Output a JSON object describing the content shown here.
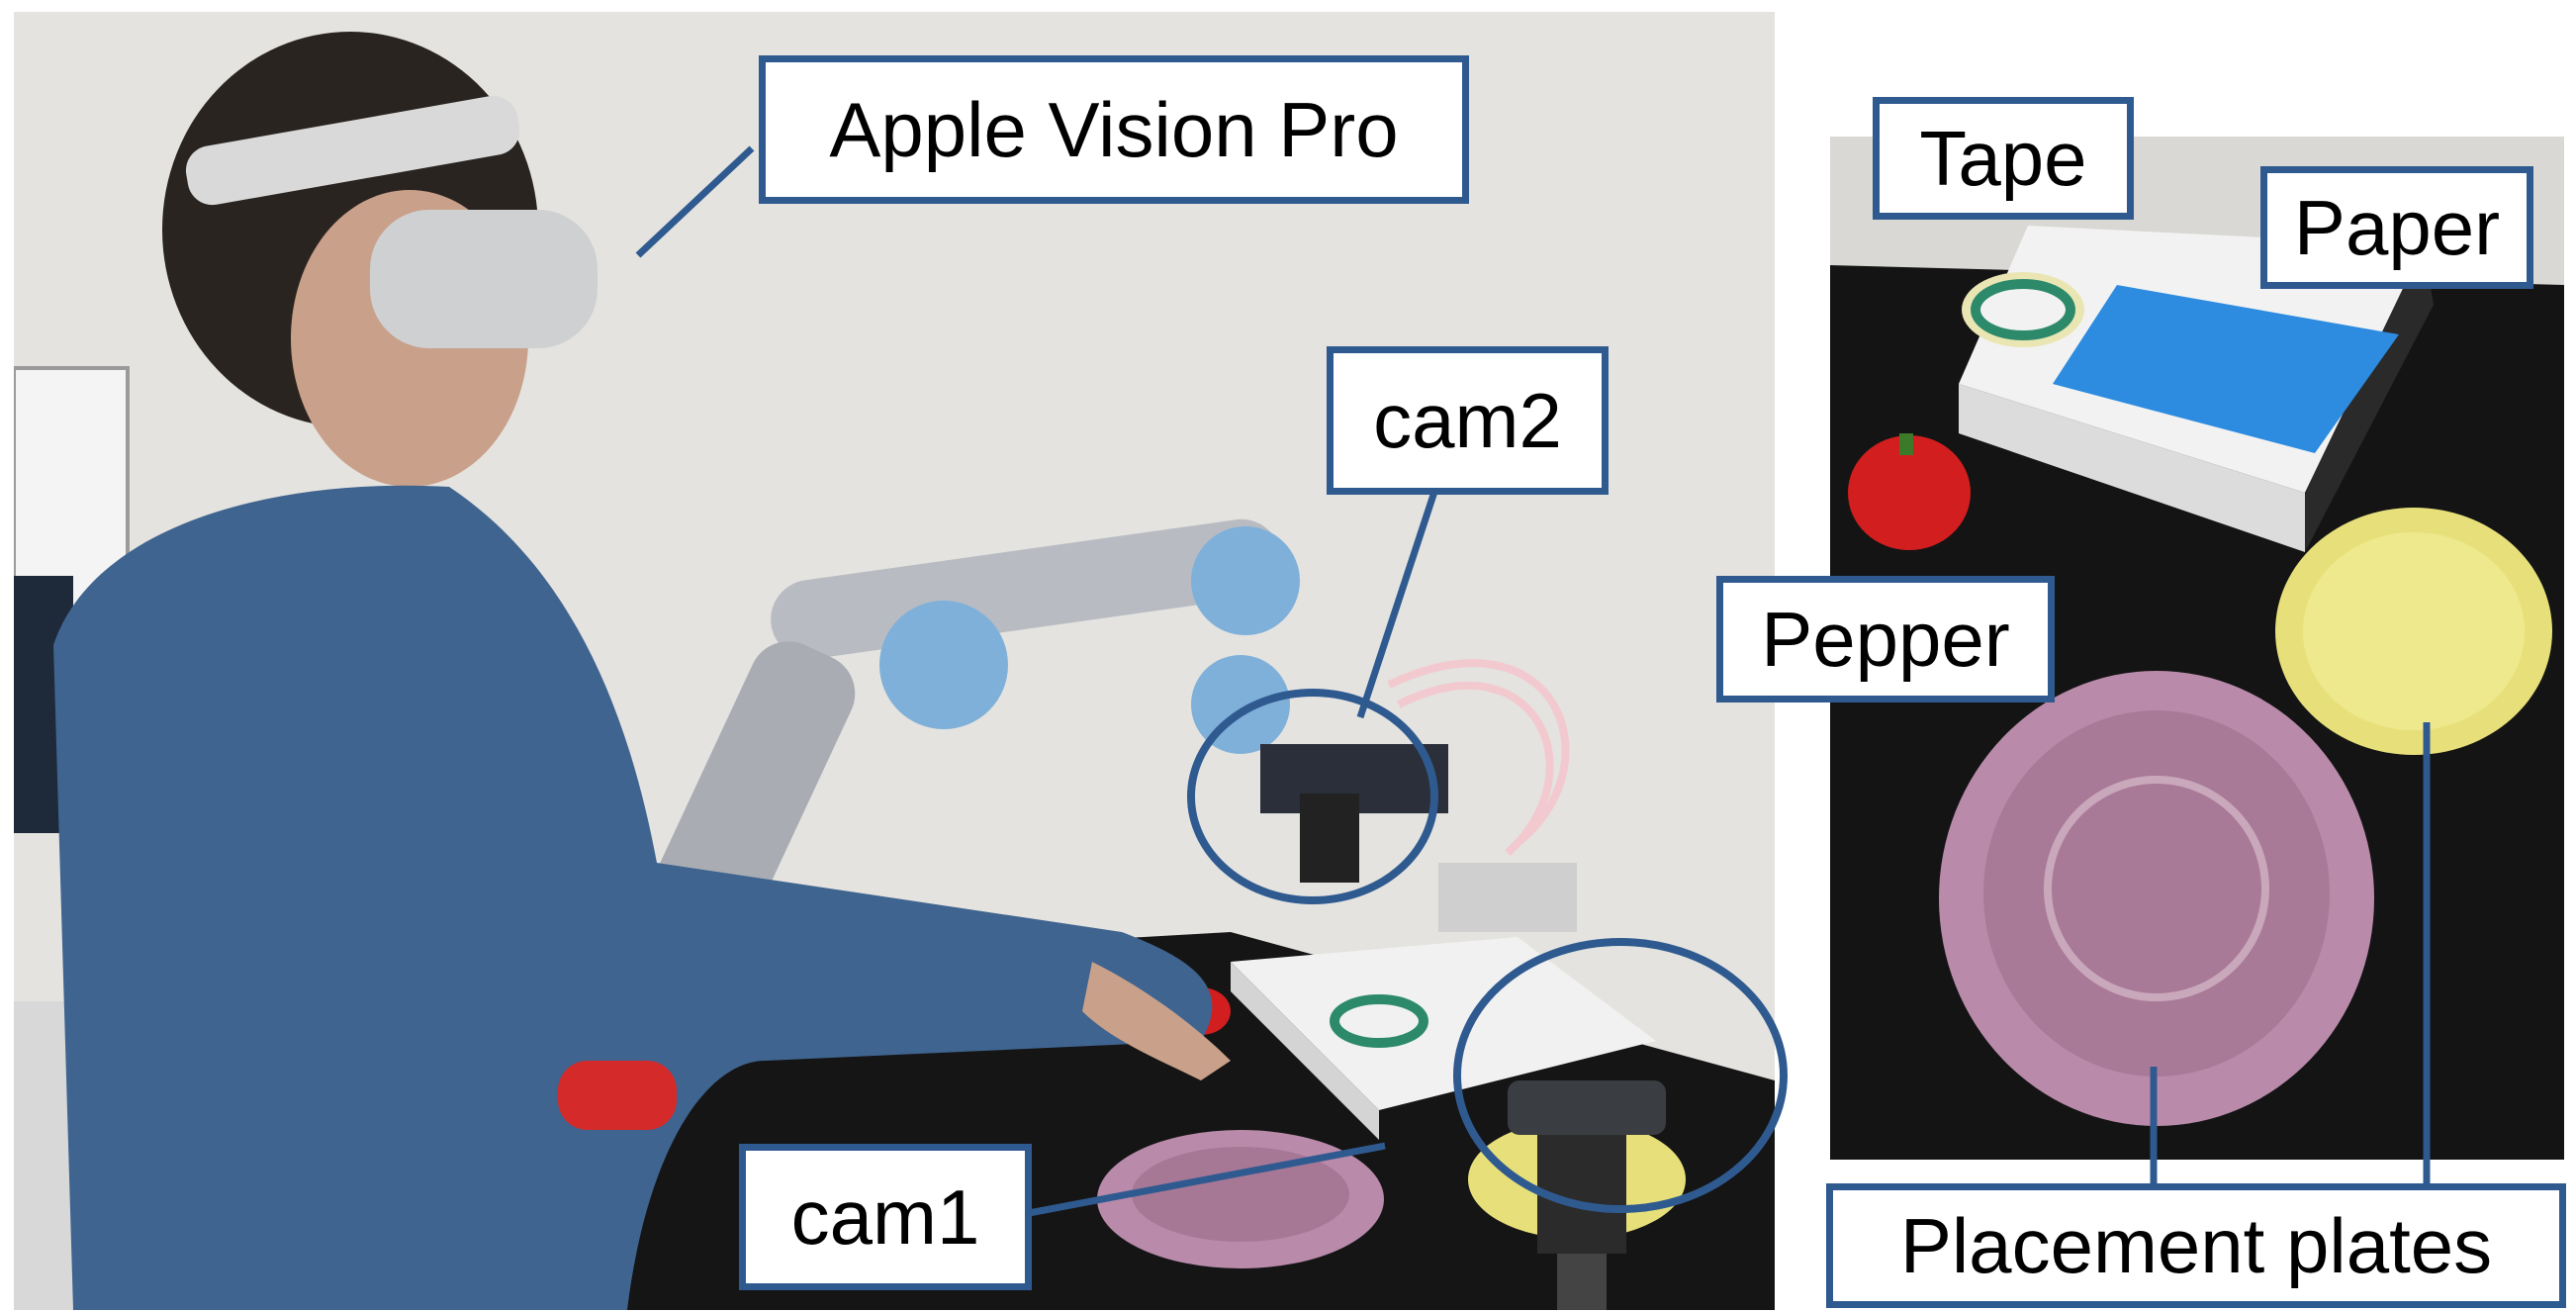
{
  "labels": {
    "headset": "Apple Vision Pro",
    "cam2": "cam2",
    "cam1": "cam1",
    "tape": "Tape",
    "paper": "Paper",
    "pepper": "Pepper",
    "plates": "Placement plates"
  },
  "colors": {
    "callout_blue": "#2f5a90",
    "wall": "#e4e3df",
    "table_black": "#151515",
    "shirt_denim": "#3f648f",
    "robot_blue": "#7fb0d9",
    "pink_plate": "#b98aaa",
    "yellow_plate": "#e7e07a",
    "paper_blue": "#2d8ce0",
    "pepper_red": "#d21e1e",
    "tape_green": "#2c8a6a"
  }
}
